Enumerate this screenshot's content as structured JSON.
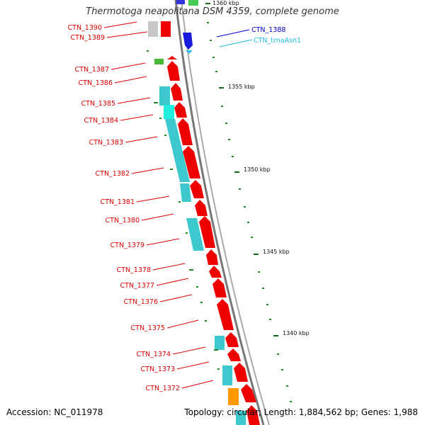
{
  "title": "Thermotoga neapolitana DSM 4359, complete genome",
  "accession": "Accession: NC_011978",
  "topology": "Topology: circular; Length: 1,884,562 bp; Genes: 1,988",
  "colors": {
    "cds": "#ff0000",
    "rna": "#00ccdd",
    "blast": "#3cc8cc",
    "trna": "#0000cc",
    "gray": "#c0c0c0",
    "green": "#33bb33",
    "orange": "#ff9900",
    "backbone": "#888888"
  },
  "ticks": [
    {
      "label": "1360 kbp"
    },
    {
      "label": "1355 kbp"
    },
    {
      "label": "1350 kbp"
    },
    {
      "label": "1345 kbp"
    },
    {
      "label": "1340 kbp"
    }
  ],
  "genes_left": [
    "CTN_1390",
    "CTN_1389",
    "CTN_1387",
    "CTN_1386",
    "CTN_1385",
    "CTN_1384",
    "CTN_1383",
    "CTN_1382",
    "CTN_1381",
    "CTN_1380",
    "CTN_1379",
    "CTN_1378",
    "CTN_1377",
    "CTN_1376",
    "CTN_1375",
    "CTN_1374",
    "CTN_1373",
    "CTN_1372"
  ],
  "genes_right": [
    {
      "label": "CTN_1388",
      "color": "#0000cc"
    },
    {
      "label": "CTN_trnaAsn1",
      "color": "#22bbdd"
    }
  ]
}
